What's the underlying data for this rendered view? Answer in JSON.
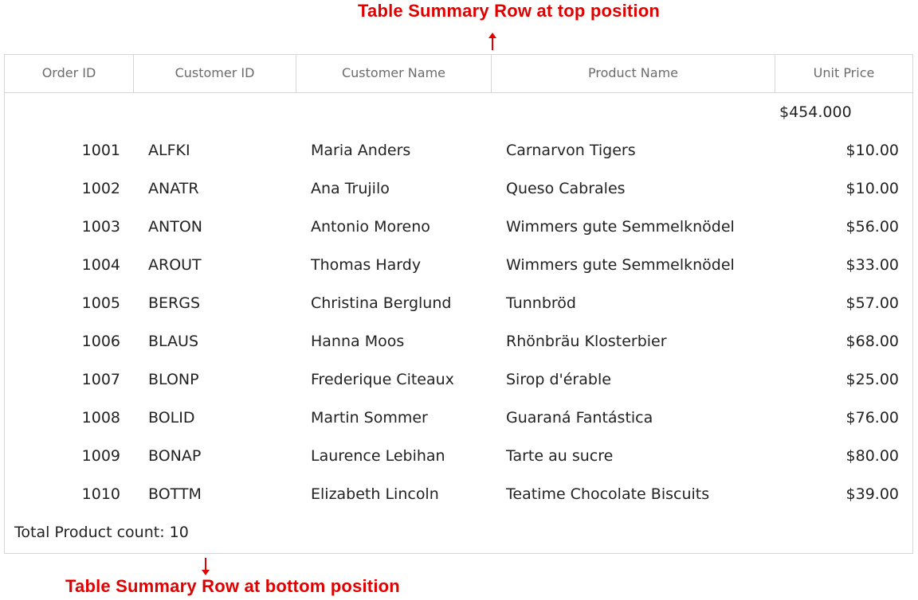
{
  "annotations": {
    "top": "Table Summary Row at top position",
    "bottom": "Table Summary Row at bottom position",
    "color": "#e00000"
  },
  "columns": [
    "Order ID",
    "Customer ID",
    "Customer Name",
    "Product Name",
    "Unit Price"
  ],
  "summary_top": {
    "unit_price_total": "$454.000"
  },
  "rows": [
    [
      "1001",
      "ALFKI",
      "Maria Anders",
      "Carnarvon Tigers",
      "$10.00"
    ],
    [
      "1002",
      "ANATR",
      "Ana Trujilo",
      "Queso Cabrales",
      "$10.00"
    ],
    [
      "1003",
      "ANTON",
      "Antonio Moreno",
      "Wimmers gute Semmelknödel",
      "$56.00"
    ],
    [
      "1004",
      "AROUT",
      "Thomas Hardy",
      "Wimmers gute Semmelknödel",
      "$33.00"
    ],
    [
      "1005",
      "BERGS",
      "Christina Berglund",
      "Tunnbröd",
      "$57.00"
    ],
    [
      "1006",
      "BLAUS",
      "Hanna Moos",
      "Rhönbräu Klosterbier",
      "$68.00"
    ],
    [
      "1007",
      "BLONP",
      "Frederique Citeaux",
      "Sirop d'érable",
      "$25.00"
    ],
    [
      "1008",
      "BOLID",
      "Martin Sommer",
      "Guaraná Fantástica",
      "$76.00"
    ],
    [
      "1009",
      "BONAP",
      "Laurence Lebihan",
      "Tarte au sucre",
      "$80.00"
    ],
    [
      "1010",
      "BOTTM",
      "Elizabeth Lincoln",
      "Teatime Chocolate Biscuits",
      "$39.00"
    ]
  ],
  "summary_bottom": {
    "text": "Total Product count: 10"
  }
}
